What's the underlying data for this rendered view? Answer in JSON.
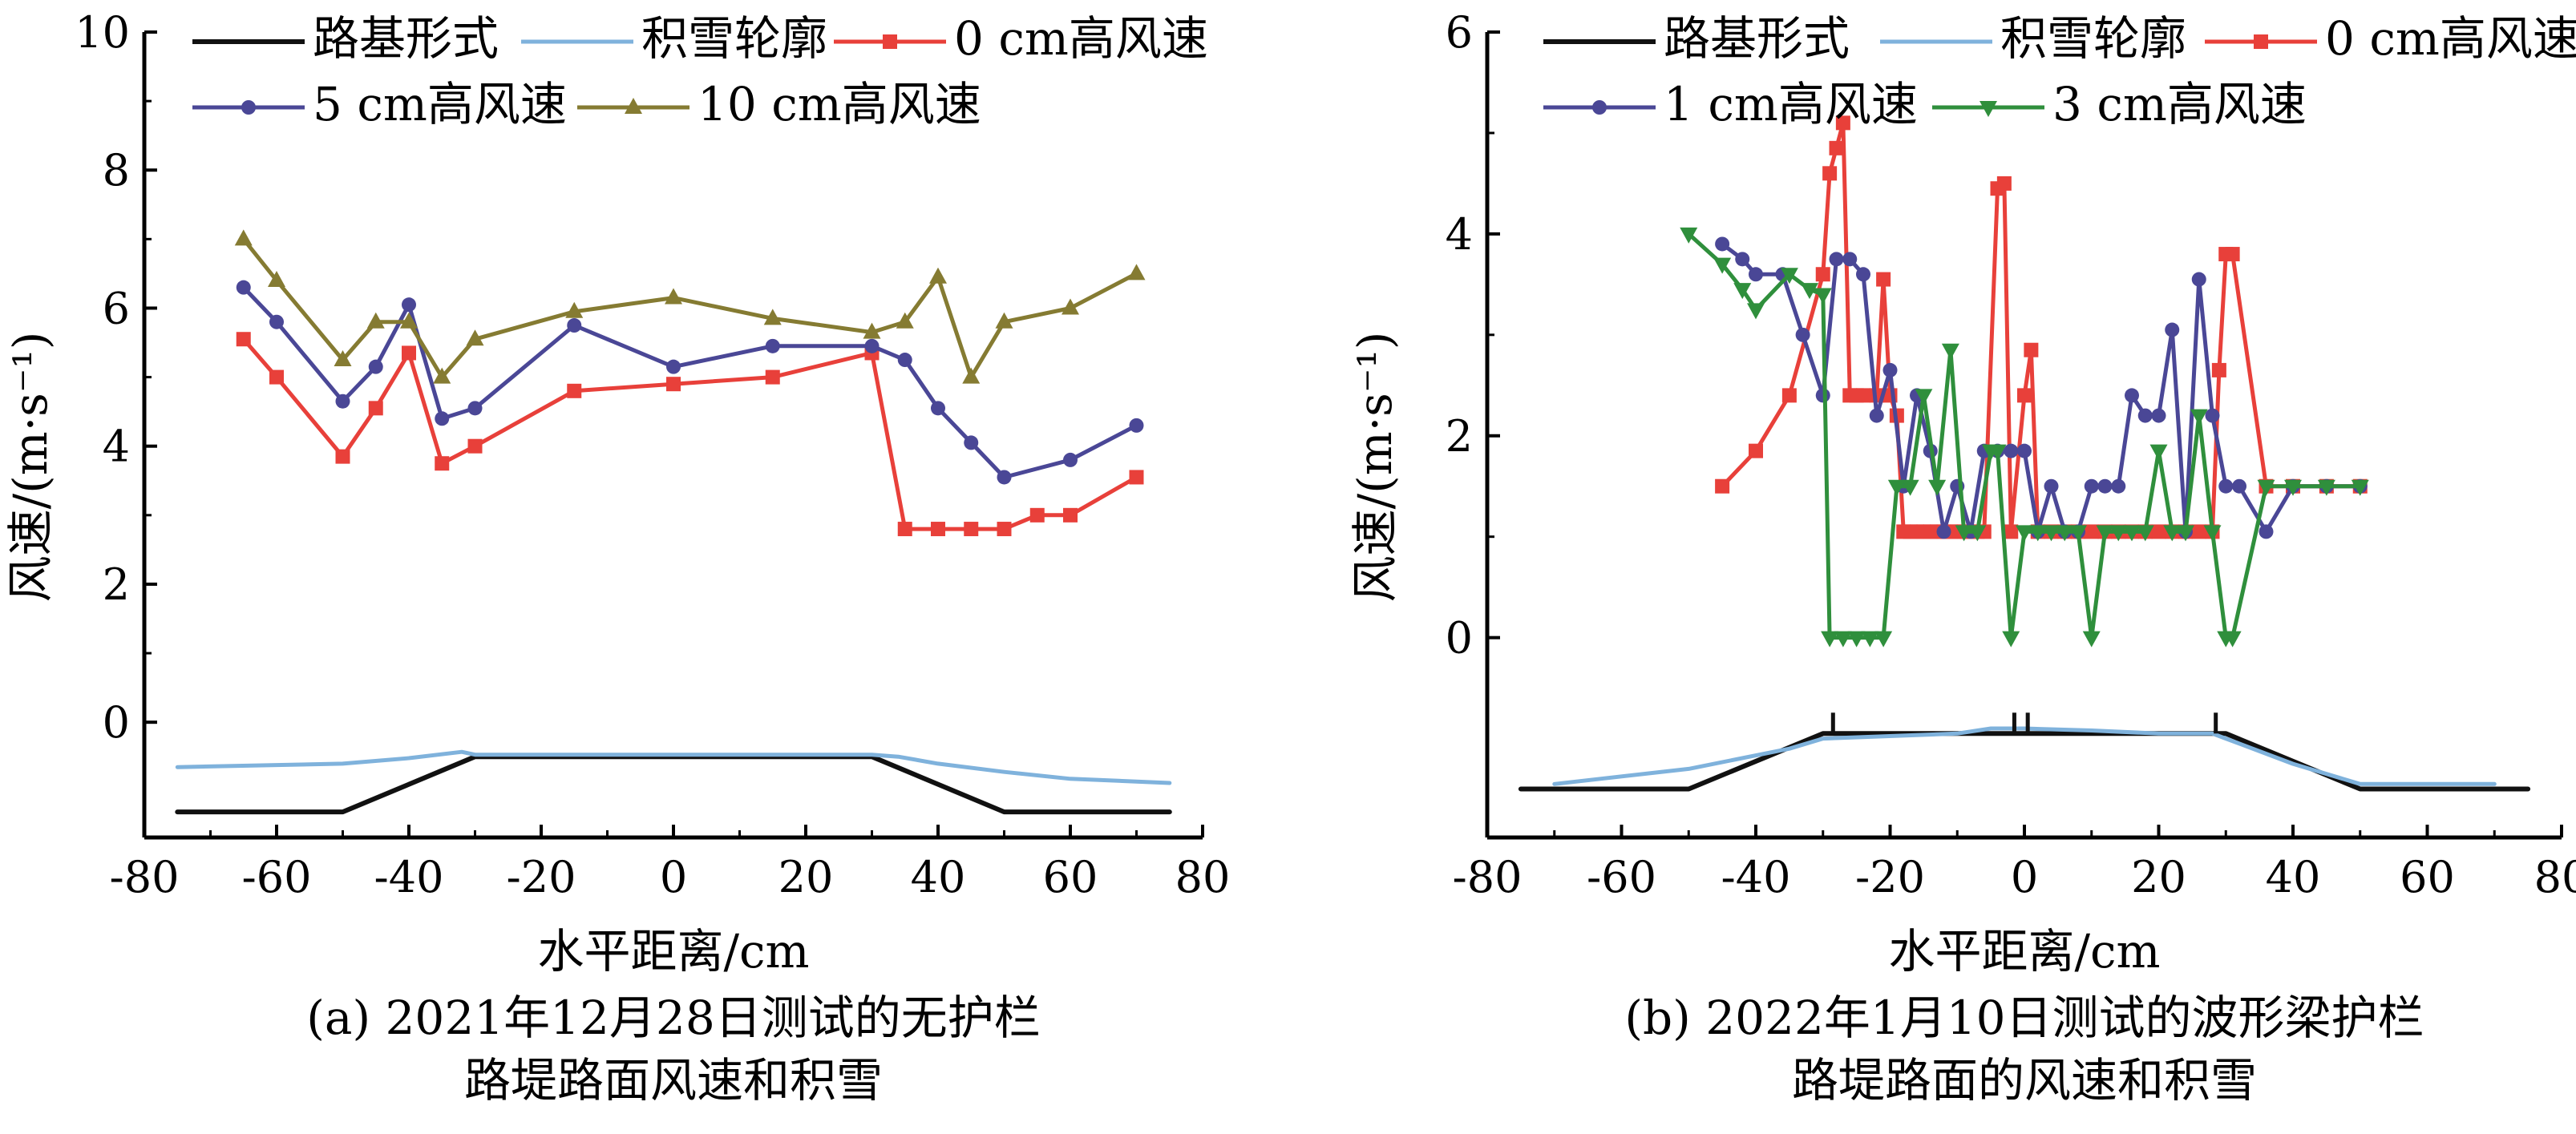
{
  "chart_data": [
    {
      "type": "line",
      "xlabel": "水平距离/cm",
      "ylabel": "风速/(m·s⁻¹)",
      "caption": [
        "(a) 2021年12月28日测试的无护栏",
        "路堤路面风速和积雪"
      ],
      "xlim": [
        -80,
        80
      ],
      "ylim": [
        -2,
        10
      ],
      "xticks": [
        "-80",
        "-60",
        "-40",
        "-20",
        "0",
        "20",
        "40",
        "60",
        "80"
      ],
      "yticks": [
        "0",
        "2",
        "4",
        "6",
        "8",
        "10"
      ],
      "legend_position": "top",
      "series": [
        {
          "name": "路基形式",
          "color": "#111111",
          "marker": "none",
          "x": [
            -75,
            -50,
            -30,
            30,
            50,
            75
          ],
          "y": [
            -1.3,
            -1.3,
            -0.5,
            -0.5,
            -1.3,
            -1.3
          ]
        },
        {
          "name": "积雪轮廓",
          "color": "#7fb2dc",
          "marker": "none",
          "x": [
            -75,
            -60,
            -50,
            -40,
            -32,
            -30,
            0,
            30,
            34,
            40,
            50,
            60,
            70,
            75
          ],
          "y": [
            -0.65,
            -0.62,
            -0.6,
            -0.52,
            -0.43,
            -0.47,
            -0.47,
            -0.47,
            -0.5,
            -0.6,
            -0.72,
            -0.82,
            -0.86,
            -0.88
          ]
        },
        {
          "name": "0 cm高风速",
          "color": "#e8403a",
          "marker": "square",
          "x": [
            -65,
            -60,
            -50,
            -45,
            -40,
            -35,
            -30,
            -15,
            0,
            15,
            30,
            35,
            40,
            45,
            50,
            55,
            60,
            70
          ],
          "y": [
            5.55,
            5.0,
            3.85,
            4.55,
            5.35,
            3.75,
            4.0,
            4.8,
            4.9,
            5.0,
            5.35,
            2.8,
            2.8,
            2.8,
            2.8,
            3.0,
            3.0,
            3.55
          ]
        },
        {
          "name": "5 cm高风速",
          "color": "#4a4796",
          "marker": "circle",
          "x": [
            -65,
            -60,
            -50,
            -45,
            -40,
            -35,
            -30,
            -15,
            0,
            15,
            30,
            35,
            40,
            45,
            50,
            60,
            70
          ],
          "y": [
            6.3,
            5.8,
            4.65,
            5.15,
            6.05,
            4.4,
            4.55,
            5.75,
            5.15,
            5.45,
            5.45,
            5.25,
            4.55,
            4.05,
            3.55,
            3.8,
            4.3
          ]
        },
        {
          "name": "10 cm高风速",
          "color": "#857b32",
          "marker": "triangle-up",
          "x": [
            -65,
            -60,
            -50,
            -45,
            -40,
            -35,
            -30,
            -15,
            0,
            15,
            30,
            35,
            40,
            45,
            50,
            60,
            70
          ],
          "y": [
            7.0,
            6.4,
            5.25,
            5.8,
            5.8,
            5.0,
            5.55,
            5.95,
            6.15,
            5.85,
            5.65,
            5.8,
            6.45,
            5.0,
            5.8,
            6.0,
            6.5
          ]
        }
      ]
    },
    {
      "type": "line",
      "xlabel": "水平距离/cm",
      "ylabel": "风速/(m·s⁻¹)",
      "caption": [
        "(b) 2022年1月10日测试的波形梁护栏",
        "路堤路面的风速和积雪"
      ],
      "xlim": [
        -80,
        80
      ],
      "ylim": [
        -2,
        6
      ],
      "xticks": [
        "-80",
        "-60",
        "-40",
        "-20",
        "0",
        "20",
        "40",
        "60",
        "80"
      ],
      "yticks": [
        "0",
        "2",
        "4",
        "6"
      ],
      "legend_position": "top",
      "series": [
        {
          "name": "路基形式",
          "color": "#111111",
          "marker": "none",
          "x": [
            -75,
            -50,
            -30,
            30,
            50,
            75
          ],
          "y": [
            -1.5,
            -1.5,
            -0.95,
            -0.95,
            -1.5,
            -1.5
          ]
        },
        {
          "name": "积雪轮廓",
          "color": "#7fb2dc",
          "marker": "none",
          "x": [
            -70,
            -50,
            -35,
            -30,
            -10,
            -5,
            0,
            10,
            20,
            28,
            30,
            40,
            50,
            70
          ],
          "y": [
            -1.45,
            -1.3,
            -1.1,
            -1.0,
            -0.95,
            -0.9,
            -0.9,
            -0.92,
            -0.95,
            -0.95,
            -1.0,
            -1.25,
            -1.45,
            -1.45
          ]
        },
        {
          "name": "0 cm高风速",
          "color": "#e8403a",
          "marker": "square",
          "x": [
            -45,
            -40,
            -35,
            -30,
            -29,
            -28,
            -27,
            -26,
            -25,
            -24,
            -22,
            -21,
            -20,
            -19,
            -18,
            -17,
            -16,
            -15,
            -14,
            -13,
            -12,
            -11,
            -10,
            -9,
            -8,
            -7,
            -6,
            -4,
            -3,
            -2,
            0,
            1,
            2,
            4,
            6,
            8,
            10,
            12,
            14,
            16,
            18,
            20,
            22,
            24,
            26,
            28,
            29,
            30,
            31,
            36,
            40,
            45,
            50
          ],
          "y": [
            1.5,
            1.85,
            2.4,
            3.6,
            4.6,
            4.85,
            5.1,
            2.4,
            2.4,
            2.4,
            2.4,
            3.55,
            2.4,
            2.2,
            1.05,
            1.05,
            1.05,
            1.05,
            1.05,
            1.05,
            1.05,
            1.05,
            1.05,
            1.05,
            1.05,
            1.05,
            1.05,
            4.45,
            4.5,
            1.05,
            2.4,
            2.85,
            1.05,
            1.05,
            1.05,
            1.05,
            1.05,
            1.05,
            1.05,
            1.05,
            1.05,
            1.05,
            1.05,
            1.05,
            1.05,
            1.05,
            2.65,
            3.8,
            3.8,
            1.5,
            1.5,
            1.5,
            1.5
          ]
        },
        {
          "name": "1 cm高风速",
          "color": "#4a4796",
          "marker": "circle",
          "x": [
            -45,
            -42,
            -40,
            -36,
            -33,
            -30,
            -28,
            -26,
            -24,
            -22,
            -20,
            -18,
            -16,
            -14,
            -12,
            -10,
            -8,
            -6,
            -4,
            -2,
            0,
            2,
            4,
            6,
            8,
            10,
            12,
            14,
            16,
            18,
            20,
            22,
            24,
            26,
            28,
            30,
            32,
            36,
            40,
            45,
            50
          ],
          "y": [
            3.9,
            3.75,
            3.6,
            3.6,
            3.0,
            2.4,
            3.75,
            3.75,
            3.6,
            2.2,
            2.65,
            1.5,
            2.4,
            1.85,
            1.05,
            1.5,
            1.05,
            1.85,
            1.85,
            1.85,
            1.85,
            1.05,
            1.5,
            1.05,
            1.05,
            1.5,
            1.5,
            1.5,
            2.4,
            2.2,
            2.2,
            3.05,
            1.05,
            3.55,
            2.2,
            1.5,
            1.5,
            1.05,
            1.5,
            1.5,
            1.5
          ]
        },
        {
          "name": "3 cm高风速",
          "color": "#2f8f3c",
          "marker": "triangle-down",
          "x": [
            -50,
            -45,
            -42,
            -40,
            -35,
            -32,
            -30,
            -29,
            -27,
            -25,
            -23,
            -21,
            -19,
            -17,
            -15,
            -13,
            -11,
            -9,
            -7,
            -5,
            -4,
            -2,
            0,
            2,
            4,
            6,
            8,
            10,
            12,
            14,
            16,
            18,
            20,
            22,
            24,
            26,
            28,
            30,
            31,
            36,
            40,
            45,
            50
          ],
          "y": [
            4.0,
            3.7,
            3.45,
            3.25,
            3.6,
            3.45,
            3.4,
            0.0,
            0.0,
            0.0,
            0.0,
            0.0,
            1.5,
            1.5,
            2.4,
            1.5,
            2.85,
            1.05,
            1.05,
            1.85,
            1.85,
            0.0,
            1.05,
            1.05,
            1.05,
            1.05,
            1.05,
            0.0,
            1.05,
            1.05,
            1.05,
            1.05,
            1.85,
            1.05,
            1.05,
            2.2,
            1.05,
            0.0,
            0.0,
            1.5,
            1.5,
            1.5,
            1.5
          ]
        }
      ]
    }
  ]
}
